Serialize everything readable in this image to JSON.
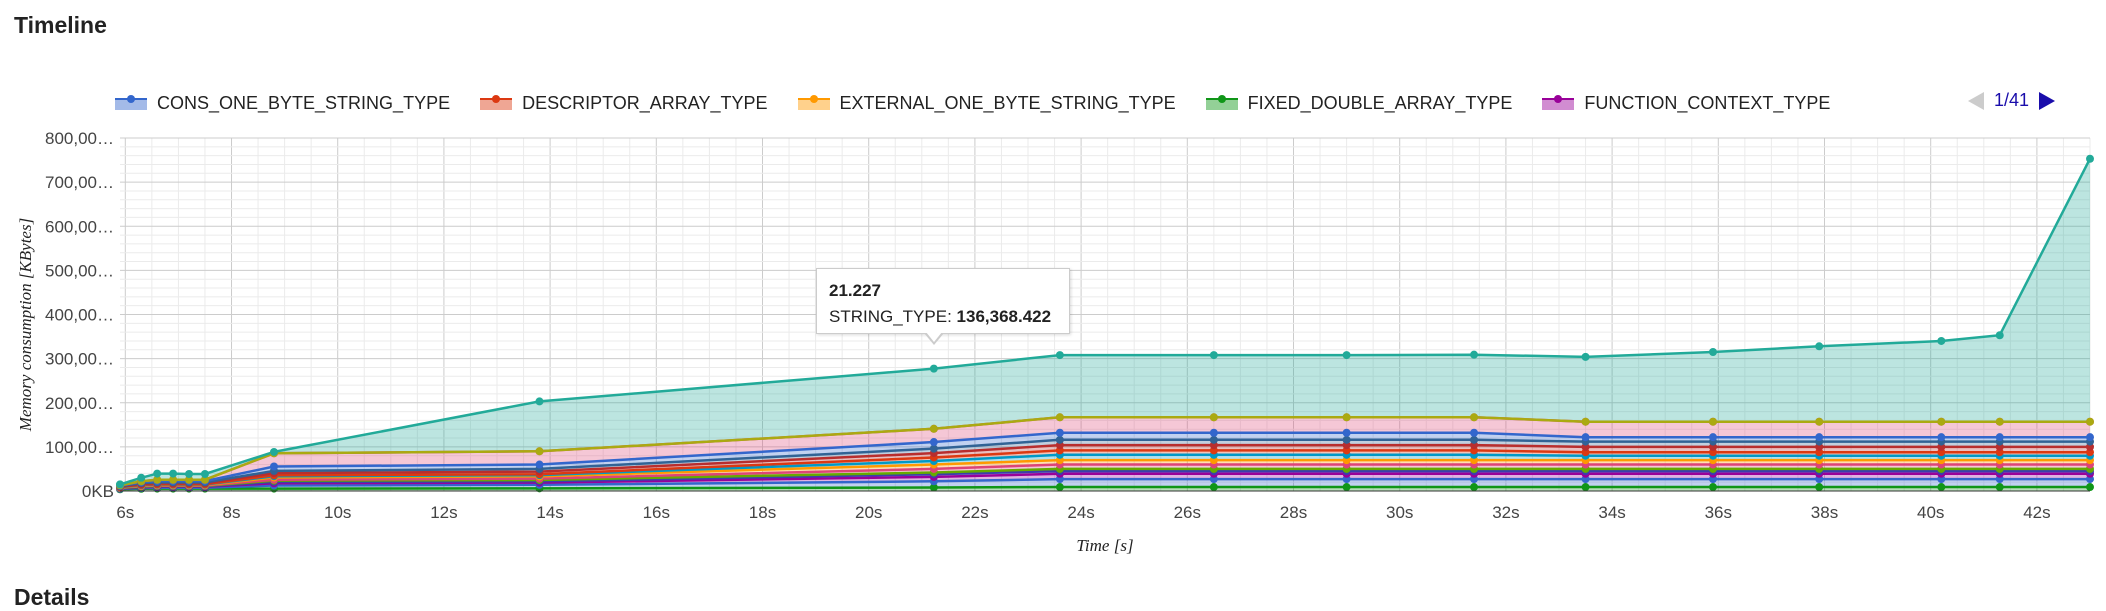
{
  "page": {
    "title": "Timeline",
    "next_section_title": "Details"
  },
  "legend": {
    "items": [
      {
        "label": "CONS_ONE_BYTE_STRING_TYPE",
        "color": "#3366cc"
      },
      {
        "label": "DESCRIPTOR_ARRAY_TYPE",
        "color": "#dc3912"
      },
      {
        "label": "EXTERNAL_ONE_BYTE_STRING_TYPE",
        "color": "#ff9900"
      },
      {
        "label": "FIXED_DOUBLE_ARRAY_TYPE",
        "color": "#109618"
      },
      {
        "label": "FUNCTION_CONTEXT_TYPE",
        "color": "#990099"
      }
    ],
    "page_indicator": "1/41"
  },
  "tooltip": {
    "x_label": "21.227",
    "series_name": "STRING_TYPE:",
    "value": "136,368.422"
  },
  "chart_data": {
    "type": "area",
    "stacked": true,
    "xlabel": "Time [s]",
    "ylabel": "Memory consumption [KBytes]",
    "xlim": [
      5.9,
      43.0
    ],
    "ylim": [
      0,
      800000
    ],
    "x_ticks": [
      {
        "value": 6,
        "label": "6s"
      },
      {
        "value": 8,
        "label": "8s"
      },
      {
        "value": 10,
        "label": "10s"
      },
      {
        "value": 12,
        "label": "12s"
      },
      {
        "value": 14,
        "label": "14s"
      },
      {
        "value": 16,
        "label": "16s"
      },
      {
        "value": 18,
        "label": "18s"
      },
      {
        "value": 20,
        "label": "20s"
      },
      {
        "value": 22,
        "label": "22s"
      },
      {
        "value": 24,
        "label": "24s"
      },
      {
        "value": 26,
        "label": "26s"
      },
      {
        "value": 28,
        "label": "28s"
      },
      {
        "value": 30,
        "label": "30s"
      },
      {
        "value": 32,
        "label": "32s"
      },
      {
        "value": 34,
        "label": "34s"
      },
      {
        "value": 36,
        "label": "36s"
      },
      {
        "value": 38,
        "label": "38s"
      },
      {
        "value": 40,
        "label": "40s"
      },
      {
        "value": 42,
        "label": "42s"
      }
    ],
    "y_ticks": [
      {
        "value": 0,
        "label": "0KB"
      },
      {
        "value": 100000,
        "label": "100,00…"
      },
      {
        "value": 200000,
        "label": "200,00…"
      },
      {
        "value": 300000,
        "label": "300,00…"
      },
      {
        "value": 400000,
        "label": "400,00…"
      },
      {
        "value": 500000,
        "label": "500,00…"
      },
      {
        "value": 600000,
        "label": "600,00…"
      },
      {
        "value": 700000,
        "label": "700,00…"
      },
      {
        "value": 800000,
        "label": "800,00…"
      }
    ],
    "grid": true,
    "legend_position": "top",
    "x": [
      5.9,
      6.3,
      6.6,
      6.9,
      7.2,
      7.5,
      8.8,
      13.8,
      21.227,
      23.6,
      26.5,
      29.0,
      31.4,
      33.5,
      35.9,
      37.9,
      40.2,
      41.3,
      43.0
    ],
    "series": [
      {
        "color": "#109618",
        "values": [
          4000,
          5000,
          5500,
          5500,
          5500,
          5500,
          5500,
          6000,
          8000,
          9000,
          9000,
          9000,
          9000,
          9000,
          9000,
          9000,
          9000,
          9000,
          9000
        ]
      },
      {
        "color": "#3366cc",
        "values": [
          1000,
          1500,
          2000,
          2000,
          2000,
          2000,
          7000,
          8000,
          14000,
          18000,
          18000,
          18000,
          18000,
          18000,
          18000,
          18000,
          18000,
          18000,
          18000
        ]
      },
      {
        "color": "#990099",
        "values": [
          1000,
          1500,
          2000,
          2000,
          2000,
          2000,
          5000,
          5000,
          10000,
          12000,
          12000,
          12000,
          12000,
          12000,
          12000,
          12000,
          12000,
          12000,
          12000
        ]
      },
      {
        "color": "#3b3eac",
        "values": [
          500,
          1000,
          1000,
          1000,
          1000,
          1000,
          3000,
          3000,
          6000,
          6000,
          6000,
          6000,
          6000,
          6000,
          6000,
          6000,
          6000,
          6000,
          6000
        ]
      },
      {
        "color": "#66aa00",
        "values": [
          500,
          1000,
          1000,
          1000,
          1000,
          1000,
          3000,
          3000,
          4000,
          5000,
          5000,
          5000,
          5000,
          5000,
          5000,
          5000,
          5000,
          5000,
          5000
        ]
      },
      {
        "color": "#dd4477",
        "values": [
          500,
          1000,
          1000,
          1000,
          1000,
          1000,
          2000,
          3000,
          8000,
          10000,
          10000,
          10000,
          10000,
          10000,
          10000,
          10000,
          10000,
          10000,
          10000
        ]
      },
      {
        "color": "#ff9900",
        "values": [
          500,
          1000,
          1000,
          1000,
          1000,
          1000,
          5000,
          5000,
          10000,
          10000,
          10000,
          10000,
          10000,
          10000,
          10000,
          10000,
          10000,
          10000,
          10000
        ]
      },
      {
        "color": "#0099c6",
        "values": [
          500,
          1000,
          1000,
          1000,
          1000,
          1000,
          3000,
          3000,
          8000,
          12000,
          12000,
          12000,
          12000,
          10000,
          10000,
          10000,
          10000,
          10000,
          10000
        ]
      },
      {
        "color": "#dc3912",
        "values": [
          500,
          1000,
          1000,
          1000,
          1000,
          1000,
          2000,
          2000,
          8000,
          10000,
          10000,
          10000,
          10000,
          8000,
          8000,
          8000,
          8000,
          8000,
          8000
        ]
      },
      {
        "color": "#b82e2e",
        "values": [
          1000,
          2000,
          2000,
          2000,
          2000,
          2000,
          5000,
          6000,
          10000,
          12000,
          12000,
          12000,
          12000,
          12000,
          12000,
          12000,
          12000,
          12000,
          12000
        ]
      },
      {
        "color": "#316395",
        "values": [
          1000,
          2000,
          2000,
          2000,
          2000,
          2000,
          5000,
          6000,
          10000,
          12000,
          12000,
          12000,
          12000,
          12000,
          12000,
          12000,
          12000,
          12000,
          12000
        ]
      },
      {
        "color": "#3366cc",
        "values": [
          1000,
          2000,
          3000,
          3000,
          3000,
          3000,
          10000,
          10000,
          15000,
          16000,
          16000,
          16000,
          16000,
          10000,
          10000,
          10000,
          10000,
          10000,
          10000
        ]
      },
      {
        "color": "#dd4477",
        "values": [
          1000,
          2000,
          3000,
          3000,
          3000,
          3000,
          30000,
          30000,
          30000,
          35000,
          35000,
          35000,
          35000,
          35000,
          35000,
          35000,
          35000,
          35000,
          35000
        ]
      },
      {
        "color": "#aaaa11",
        "values": [
          0,
          0,
          0,
          0,
          0,
          0,
          0,
          0,
          0,
          0,
          0,
          0,
          0,
          0,
          0,
          0,
          0,
          0,
          0
        ]
      },
      {
        "color": "#22aa99",
        "values": [
          2000,
          8000,
          14000,
          14000,
          13000,
          13000,
          3000,
          113000,
          136368,
          141000,
          141000,
          141000,
          142000,
          147000,
          158000,
          171000,
          183000,
          196000,
          596000
        ]
      }
    ]
  }
}
